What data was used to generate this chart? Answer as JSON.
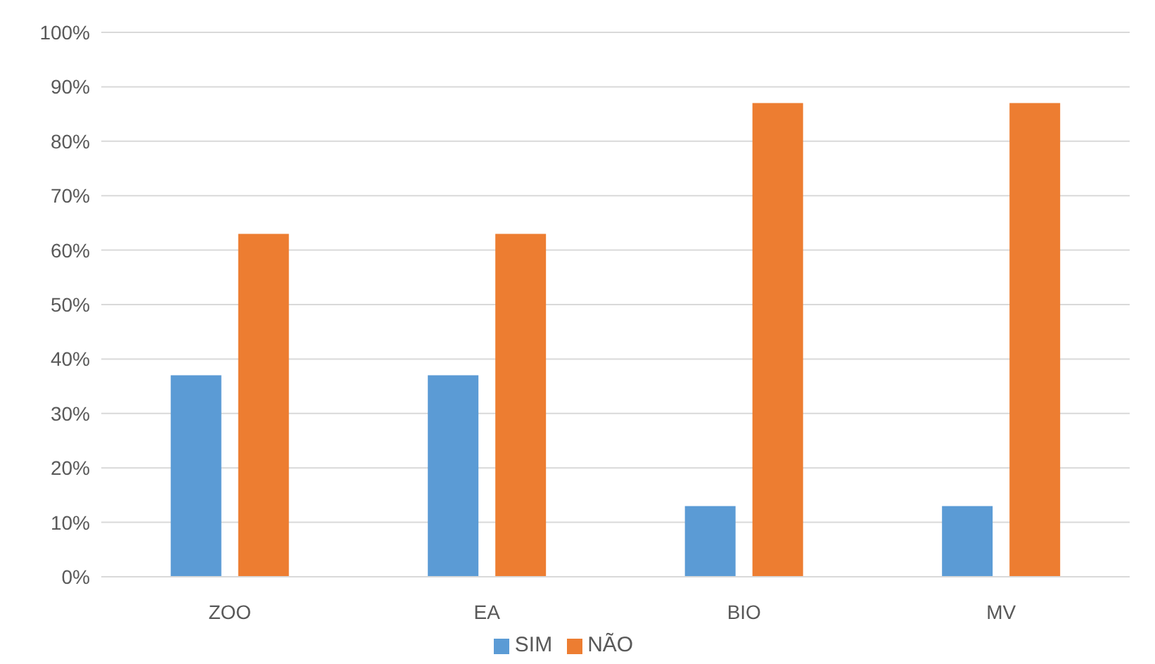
{
  "chart_data": {
    "type": "bar",
    "categories": [
      "ZOO",
      "EA",
      "BIO",
      "MV"
    ],
    "series": [
      {
        "name": "SIM",
        "color": "#5b9bd5",
        "values": [
          37,
          37,
          13,
          13
        ]
      },
      {
        "name": "NÃO",
        "color": "#ed7d31",
        "values": [
          63,
          63,
          87,
          87
        ]
      }
    ],
    "ylim": [
      0,
      100
    ],
    "yticks": [
      {
        "value": 0,
        "label": "0%"
      },
      {
        "value": 10,
        "label": "10%"
      },
      {
        "value": 20,
        "label": "20%"
      },
      {
        "value": 30,
        "label": "30%"
      },
      {
        "value": 40,
        "label": "40%"
      },
      {
        "value": 50,
        "label": "50%"
      },
      {
        "value": 60,
        "label": "60%"
      },
      {
        "value": 70,
        "label": "70%"
      },
      {
        "value": 80,
        "label": "80%"
      },
      {
        "value": 90,
        "label": "90%"
      },
      {
        "value": 100,
        "label": "100%"
      }
    ],
    "grid": "y",
    "legend": "bottom"
  }
}
